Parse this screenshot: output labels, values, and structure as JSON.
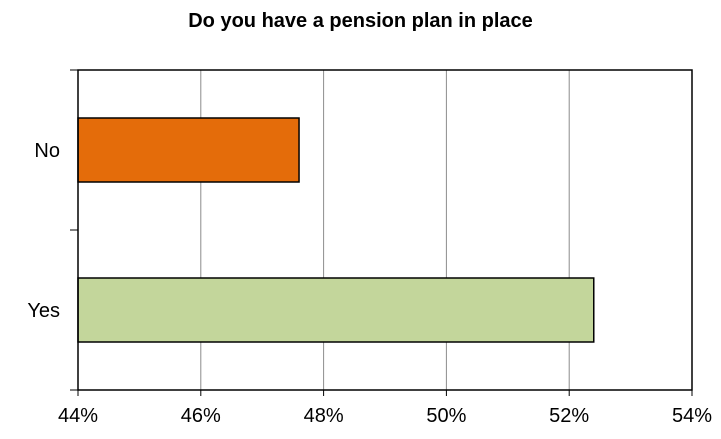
{
  "chart_data": {
    "type": "bar",
    "orientation": "horizontal",
    "title": "Do you have a pension plan in place",
    "categories": [
      "No",
      "Yes"
    ],
    "values": [
      0.476,
      0.524
    ],
    "colors": [
      "#E46C0A",
      "#C3D69B"
    ],
    "xlim": [
      0.44,
      0.54
    ],
    "xticks": [
      0.44,
      0.46,
      0.48,
      0.5,
      0.52,
      0.54
    ],
    "xtick_labels": [
      "44%",
      "46%",
      "48%",
      "50%",
      "52%",
      "54%"
    ],
    "grid": true,
    "legend": "none"
  }
}
